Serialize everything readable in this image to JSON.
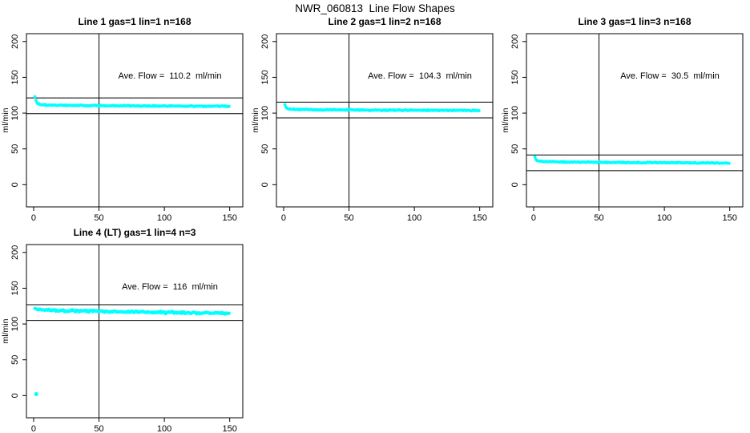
{
  "header": {
    "title": "NWR_060813  Line Flow Shapes"
  },
  "chart_data": {
    "type": "scatter",
    "title": "NWR_060813  Line Flow Shapes",
    "layout": {
      "rows": 2,
      "cols": 3,
      "grid_on": false,
      "legend": "none"
    },
    "axes": {
      "xlabel": "",
      "ylabel": "ml/min",
      "xticks": [
        0,
        50,
        100,
        150
      ],
      "yticks": [
        0,
        50,
        100,
        150,
        200
      ],
      "xlim": [
        -5.5,
        160
      ],
      "ylim": [
        -31,
        211
      ]
    },
    "colors": {
      "points": "#00ffff",
      "lines": "#000000",
      "background": "#ffffff"
    },
    "points_step": 0.75,
    "plots": [
      {
        "title": "Line 1 gas=1 lin=1 n=168",
        "annotation": "Ave. Flow =  110.2  ml/min",
        "ave_flow": 110.2,
        "unit": "ml/min",
        "n": 168,
        "vline_x": 50,
        "ref_line_upper": 121.2,
        "ref_line_lower": 99.2,
        "band_keyframes": [
          [
            1,
            123
          ],
          [
            2,
            116
          ],
          [
            3,
            113.5
          ],
          [
            6,
            112
          ],
          [
            12,
            111.2
          ],
          [
            30,
            110.7
          ],
          [
            60,
            110.3
          ],
          [
            100,
            110.0
          ],
          [
            150,
            109.6
          ]
        ],
        "jitter": 0.7,
        "marker_r": 1.9,
        "seed": 101,
        "outliers": [],
        "grid_row": 0,
        "grid_col": 0
      },
      {
        "title": "Line 2 gas=1 lin=2 n=168",
        "annotation": "Ave. Flow =  104.3  ml/min",
        "ave_flow": 104.3,
        "unit": "ml/min",
        "n": 168,
        "vline_x": 50,
        "ref_line_upper": 115.3,
        "ref_line_lower": 93.3,
        "band_keyframes": [
          [
            1,
            112
          ],
          [
            2,
            107.5
          ],
          [
            4,
            105.8
          ],
          [
            10,
            105
          ],
          [
            30,
            104.6
          ],
          [
            60,
            104.3
          ],
          [
            100,
            104.0
          ],
          [
            150,
            103.7
          ]
        ],
        "jitter": 0.7,
        "marker_r": 1.9,
        "seed": 202,
        "outliers": [],
        "grid_row": 0,
        "grid_col": 1
      },
      {
        "title": "Line 3 gas=1 lin=3 n=168",
        "annotation": "Ave. Flow =  30.5  ml/min",
        "ave_flow": 30.5,
        "unit": "ml/min",
        "n": 168,
        "vline_x": 50,
        "ref_line_upper": 41.5,
        "ref_line_lower": 19.5,
        "band_keyframes": [
          [
            1,
            38.5
          ],
          [
            2,
            34.5
          ],
          [
            4,
            33
          ],
          [
            8,
            32.3
          ],
          [
            20,
            31.7
          ],
          [
            50,
            31.2
          ],
          [
            100,
            30.7
          ],
          [
            150,
            30.2
          ]
        ],
        "jitter": 0.6,
        "marker_r": 1.9,
        "seed": 303,
        "outliers": [],
        "grid_row": 0,
        "grid_col": 2
      },
      {
        "title": "Line 4 (LT) gas=1 lin=4 n=3",
        "annotation": "Ave. Flow =  116  ml/min",
        "ave_flow": 116,
        "unit": "ml/min",
        "n": 3,
        "vline_x": 50,
        "ref_line_upper": 127.0,
        "ref_line_lower": 105.0,
        "band_keyframes": [
          [
            1,
            122
          ],
          [
            3,
            120.5
          ],
          [
            8,
            119.5
          ],
          [
            20,
            118.8
          ],
          [
            40,
            118
          ],
          [
            70,
            117
          ],
          [
            100,
            116.2
          ],
          [
            130,
            115.4
          ],
          [
            150,
            115
          ]
        ],
        "jitter": 1.3,
        "marker_r": 2.1,
        "seed": 404,
        "outliers": [
          [
            2,
            2
          ]
        ],
        "grid_row": 1,
        "grid_col": 0
      }
    ]
  }
}
